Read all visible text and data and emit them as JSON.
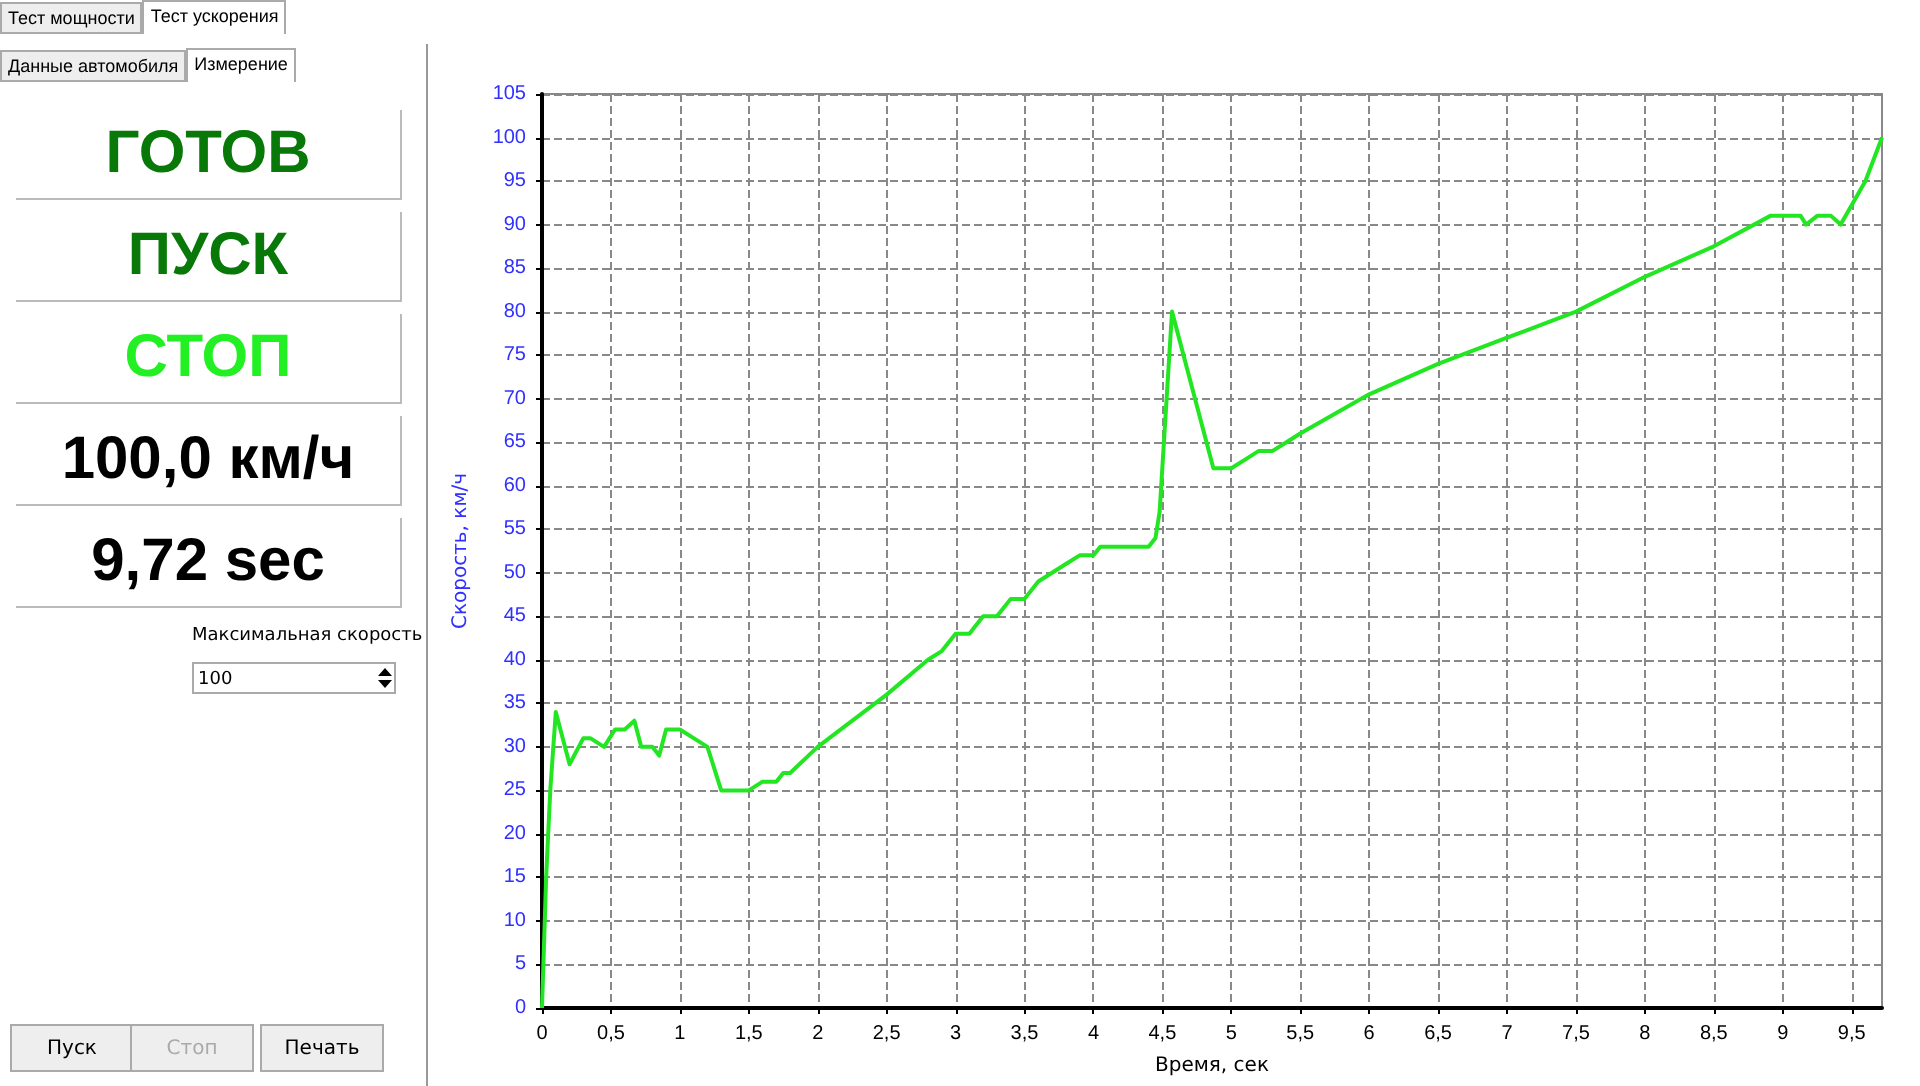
{
  "chart_data": {
    "type": "line",
    "xlabel": "Время, сек",
    "ylabel": "Скорость, км/ч",
    "annotations": [
      "Тест мощности",
      "Тест ускорения",
      "Данные автомобиля",
      "Измерение",
      "ГОТОВ",
      "ПУСК",
      "СТОП",
      "100,0 км/ч",
      "9,72 sec",
      "Максимальная скорость",
      "100",
      "Пуск",
      "Стоп",
      "Печать"
    ],
    "series": [
      {
        "color": "#22e622",
        "x": [
          0,
          0.03,
          0.06,
          0.1,
          0.2,
          0.3,
          0.35,
          0.45,
          0.53,
          0.6,
          0.67,
          0.72,
          0.8,
          0.85,
          0.9,
          1.0,
          1.1,
          1.2,
          1.3,
          1.5,
          1.6,
          1.7,
          1.75,
          1.8,
          2.0,
          2.5,
          2.8,
          2.9,
          3.0,
          3.1,
          3.2,
          3.3,
          3.4,
          3.5,
          3.6,
          3.7,
          3.8,
          3.9,
          4.0,
          4.05,
          4.4,
          4.45,
          4.48,
          4.57,
          4.87,
          5.0,
          5.1,
          5.2,
          5.3,
          5.4,
          5.5,
          6.0,
          6.5,
          7.0,
          7.5,
          8.0,
          8.5,
          8.91,
          9.13,
          9.17,
          9.25,
          9.35,
          9.42,
          9.6,
          9.72
        ],
        "values": [
          0,
          15,
          25,
          34,
          28,
          31,
          31,
          30,
          32,
          32,
          33,
          30,
          30,
          29,
          32,
          32,
          31,
          30,
          25,
          25,
          26,
          26,
          27,
          27,
          30,
          36,
          40,
          41,
          43,
          43,
          45,
          45,
          47,
          47,
          49,
          50,
          51,
          52,
          52,
          53,
          53,
          54,
          57,
          80,
          62,
          62,
          63,
          64,
          64,
          65,
          66,
          70.5,
          74,
          77,
          80,
          84,
          87.5,
          91,
          91,
          90,
          91,
          91,
          90,
          95,
          100
        ]
      }
    ],
    "xlim": [
      0,
      9.72
    ],
    "ylim": [
      0,
      105
    ],
    "xticks": [
      0,
      {
        "value": 0.5,
        "label": "0,5"
      },
      1,
      {
        "value": 1.5,
        "label": "1,5"
      },
      2,
      {
        "value": 2.5,
        "label": "2,5"
      },
      3,
      {
        "value": 3.5,
        "label": "3,5"
      },
      4,
      {
        "value": 4.5,
        "label": "4,5"
      },
      5,
      {
        "value": 5.5,
        "label": "5,5"
      },
      6,
      {
        "value": 6.5,
        "label": "6,5"
      },
      7,
      {
        "value": 7.5,
        "label": "7,5"
      },
      8,
      {
        "value": 8.5,
        "label": "8,5"
      },
      9,
      {
        "value": 9.5,
        "label": "9,5"
      }
    ],
    "yticks": [
      0,
      5,
      10,
      15,
      20,
      25,
      30,
      35,
      40,
      45,
      50,
      55,
      60,
      65,
      70,
      75,
      80,
      85,
      90,
      95,
      100,
      105
    ],
    "grid": true,
    "marker": "none",
    "line_style": "solid"
  }
}
